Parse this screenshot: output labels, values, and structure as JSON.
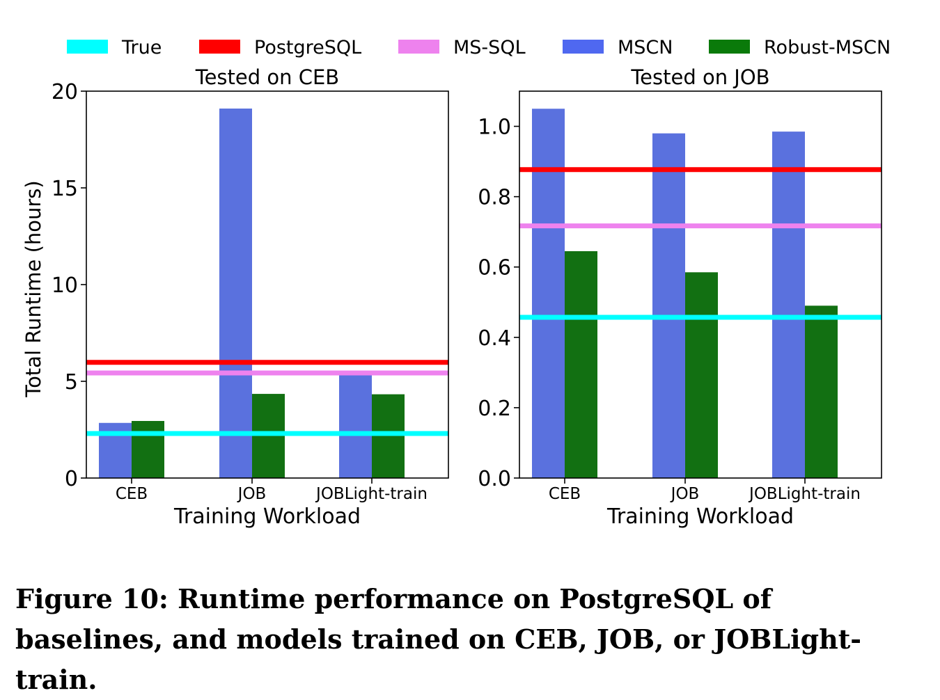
{
  "legend": [
    {
      "name": "True",
      "color": "#00ffff"
    },
    {
      "name": "PostgreSQL",
      "color": "#ff0000"
    },
    {
      "name": "MS-SQL",
      "color": "#ee82ee"
    },
    {
      "name": "MSCN",
      "color": "#4f68f0"
    },
    {
      "name": "Robust-MSCN",
      "color": "#0a7a0a"
    }
  ],
  "chart_data": [
    {
      "type": "bar",
      "title": "Tested on CEB",
      "xlabel": "Training Workload",
      "ylabel": "Total Runtime (hours)",
      "categories": [
        "CEB",
        "JOB",
        "JOBLight-train"
      ],
      "ylim": [
        0,
        20
      ],
      "yticks": [
        0,
        5,
        10,
        15,
        20
      ],
      "ytick_labels": [
        "0",
        "5",
        "10",
        "15",
        "20"
      ],
      "series": [
        {
          "name": "MSCN",
          "color": "#5a71de",
          "values": [
            2.85,
            19.1,
            5.5
          ]
        },
        {
          "name": "Robust-MSCN",
          "color": "#127012",
          "values": [
            2.95,
            4.35,
            4.33
          ]
        }
      ],
      "hlines": [
        {
          "name": "True",
          "color": "#00ffff",
          "value": 2.3
        },
        {
          "name": "PostgreSQL",
          "color": "#ff0000",
          "value": 5.98
        },
        {
          "name": "MS-SQL",
          "color": "#ee82ee",
          "value": 5.43
        }
      ]
    },
    {
      "type": "bar",
      "title": "Tested on JOB",
      "xlabel": "Training Workload",
      "ylabel": "",
      "categories": [
        "CEB",
        "JOB",
        "JOBLight-train"
      ],
      "ylim": [
        0,
        1.1
      ],
      "yticks": [
        0,
        0.2,
        0.4,
        0.6,
        0.8,
        1.0
      ],
      "ytick_labels": [
        "0.0",
        "0.2",
        "0.4",
        "0.6",
        "0.8",
        "1.0"
      ],
      "series": [
        {
          "name": "MSCN",
          "color": "#5a71de",
          "values": [
            1.05,
            0.98,
            0.985
          ]
        },
        {
          "name": "Robust-MSCN",
          "color": "#127012",
          "values": [
            0.645,
            0.585,
            0.49
          ]
        }
      ],
      "hlines": [
        {
          "name": "True",
          "color": "#00ffff",
          "value": 0.457
        },
        {
          "name": "PostgreSQL",
          "color": "#ff0000",
          "value": 0.877
        },
        {
          "name": "MS-SQL",
          "color": "#ee82ee",
          "value": 0.717
        }
      ]
    }
  ],
  "caption": "Figure 10:  Runtime performance on PostgreSQL of baselines, and models trained on CEB, JOB, or JOBLight-train."
}
